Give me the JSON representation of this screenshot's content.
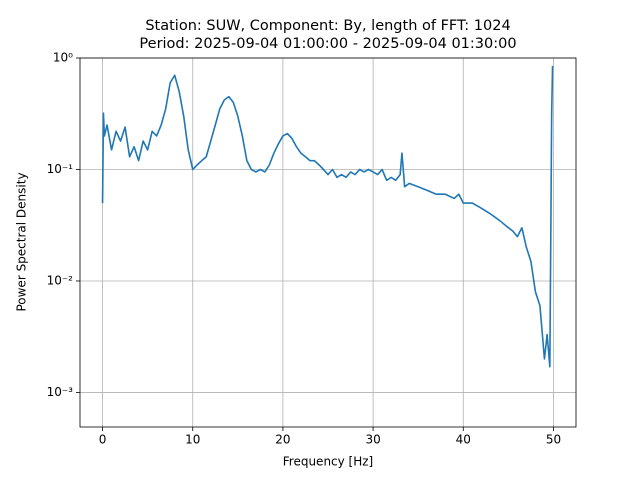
{
  "chart_data": {
    "type": "line",
    "title_lines": [
      "Station: SUW, Component: By, length of FFT: 1024",
      "Period: 2025-09-04 01:00:00 - 2025-09-04 01:30:00"
    ],
    "xlabel": "Frequency [Hz]",
    "ylabel": "Power Spectral Density",
    "x": [
      0,
      0.1,
      0.2,
      0.5,
      1,
      1.5,
      2,
      2.5,
      3,
      3.5,
      4,
      4.5,
      5,
      5.5,
      6,
      6.5,
      7,
      7.5,
      8,
      8.5,
      9,
      9.5,
      10,
      10.5,
      11,
      11.5,
      12,
      12.5,
      13,
      13.5,
      14,
      14.5,
      15,
      15.5,
      16,
      16.5,
      17,
      17.5,
      18,
      18.5,
      19,
      19.5,
      20,
      20.5,
      21,
      21.5,
      22,
      22.5,
      23,
      23.5,
      24,
      24.5,
      25,
      25.5,
      26,
      26.5,
      27,
      27.5,
      28,
      28.5,
      29,
      29.5,
      30,
      30.5,
      31,
      31.5,
      32,
      32.5,
      33,
      33.2,
      33.5,
      34,
      35,
      36,
      37,
      38,
      39,
      39.5,
      40,
      41,
      42,
      43,
      44,
      45,
      45.5,
      46,
      46.5,
      47,
      47.5,
      48,
      48.5,
      49,
      49.3,
      49.6,
      49.8,
      49.9
    ],
    "series": [
      {
        "name": "PSD",
        "color": "#1f77b4",
        "values": [
          0.05,
          0.32,
          0.2,
          0.25,
          0.15,
          0.22,
          0.18,
          0.24,
          0.13,
          0.16,
          0.12,
          0.18,
          0.15,
          0.22,
          0.2,
          0.25,
          0.35,
          0.6,
          0.7,
          0.5,
          0.3,
          0.15,
          0.1,
          0.11,
          0.12,
          0.13,
          0.18,
          0.25,
          0.35,
          0.42,
          0.45,
          0.4,
          0.3,
          0.2,
          0.12,
          0.1,
          0.095,
          0.1,
          0.095,
          0.11,
          0.14,
          0.17,
          0.2,
          0.21,
          0.19,
          0.16,
          0.14,
          0.13,
          0.12,
          0.12,
          0.11,
          0.1,
          0.09,
          0.1,
          0.085,
          0.09,
          0.085,
          0.095,
          0.09,
          0.1,
          0.095,
          0.1,
          0.095,
          0.09,
          0.1,
          0.08,
          0.085,
          0.08,
          0.09,
          0.14,
          0.07,
          0.075,
          0.07,
          0.065,
          0.06,
          0.06,
          0.055,
          0.06,
          0.05,
          0.05,
          0.045,
          0.04,
          0.035,
          0.03,
          0.028,
          0.025,
          0.03,
          0.02,
          0.015,
          0.008,
          0.006,
          0.002,
          0.0033,
          0.0017,
          0.3,
          0.85
        ]
      }
    ],
    "xlim": [
      -2.5,
      52.5
    ],
    "ylim": [
      0.00049,
      1
    ],
    "log_y": true,
    "grid": true,
    "xticks": [
      0,
      10,
      20,
      30,
      40,
      50
    ],
    "yticks": [
      {
        "value": 0.001,
        "label": "10⁻³"
      },
      {
        "value": 0.01,
        "label": "10⁻²"
      },
      {
        "value": 0.1,
        "label": "10⁻¹"
      },
      {
        "value": 1,
        "label": "10⁰"
      }
    ]
  }
}
